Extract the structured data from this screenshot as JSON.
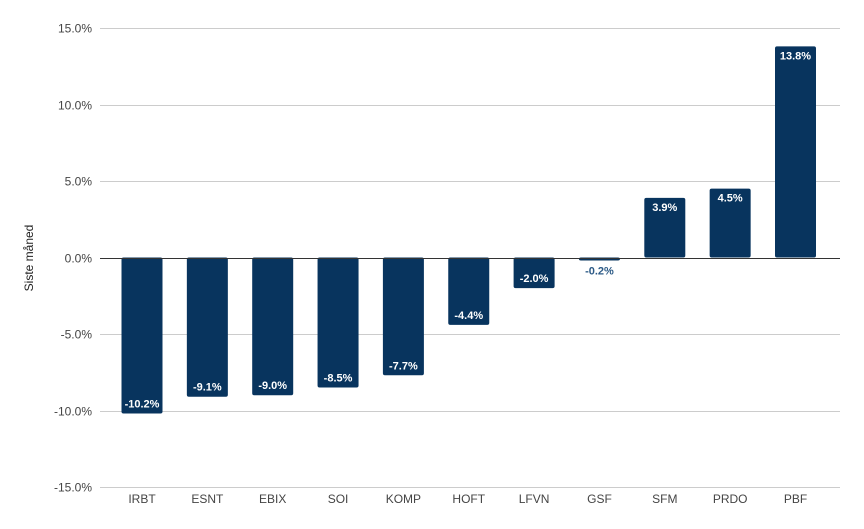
{
  "chart_data": {
    "type": "bar",
    "ylabel": "Siste måned",
    "categories": [
      "IRBT",
      "ESNT",
      "EBIX",
      "SOI",
      "KOMP",
      "HOFT",
      "LFVN",
      "GSF",
      "SFM",
      "PRDO",
      "PBF"
    ],
    "values": [
      -10.2,
      -9.1,
      -9.0,
      -8.5,
      -7.7,
      -4.4,
      -2.0,
      -0.2,
      3.9,
      4.5,
      13.8
    ],
    "data_labels": [
      "-10.2%",
      "-9.1%",
      "-9.0%",
      "-8.5%",
      "-7.7%",
      "-4.4%",
      "-2.0%",
      "-0.2%",
      "3.9%",
      "4.5%",
      "13.8%"
    ],
    "ylim": [
      -15,
      15
    ],
    "yticks": [
      15,
      10,
      5,
      0,
      -5,
      -10,
      -15
    ],
    "ytick_labels": [
      "15.0%",
      "10.0%",
      "5.0%",
      "0.0%",
      "-5.0%",
      "-10.0%",
      "-15.0%"
    ],
    "grid": true,
    "bar_color": "#08345e",
    "inside_label_color": "#ffffff",
    "outside_label_color": "#2c5a86",
    "grid_color": "#cccccc",
    "zero_line_color": "#333333"
  }
}
